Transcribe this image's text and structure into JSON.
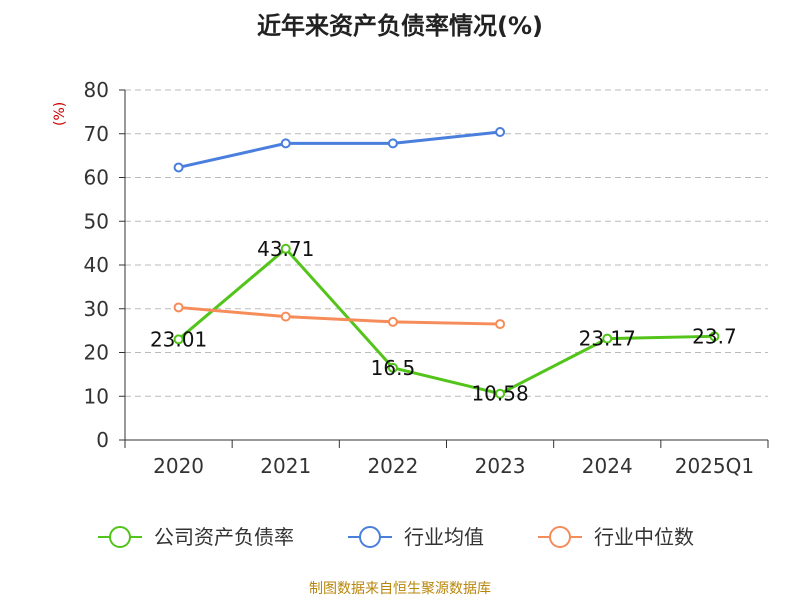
{
  "chart_data": {
    "type": "line",
    "title": "近年来资产负债率情况(%)",
    "ylabel": "(%)",
    "xlabel": "",
    "categories": [
      "2020",
      "2021",
      "2022",
      "2023",
      "2024",
      "2025Q1"
    ],
    "ylim": [
      0,
      80
    ],
    "yticks": [
      0,
      10,
      20,
      30,
      40,
      50,
      60,
      70,
      80
    ],
    "grid": true,
    "legend_position": "bottom",
    "series": [
      {
        "name": "公司资产负债率",
        "color": "#52c41a",
        "values": [
          23.01,
          43.71,
          16.5,
          10.58,
          23.17,
          23.7
        ],
        "labels": [
          "23.01",
          "43.71",
          "16.5",
          "10.58",
          "23.17",
          "23.7"
        ]
      },
      {
        "name": "行业均值",
        "color": "#4a7fdd",
        "values": [
          62.3,
          67.8,
          67.8,
          70.4,
          null,
          null
        ]
      },
      {
        "name": "行业中位数",
        "color": "#f58c5a",
        "values": [
          30.3,
          28.2,
          27.0,
          26.5,
          null,
          null
        ]
      }
    ]
  },
  "source": "制图数据来自恒生聚源数据库"
}
